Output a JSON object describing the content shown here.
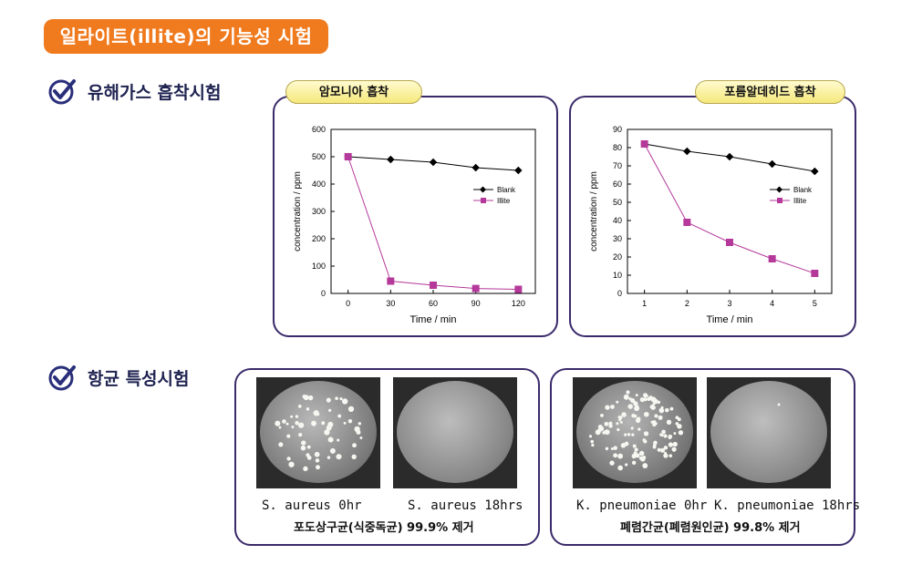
{
  "title": "일라이트(illite)의 기능성 시험",
  "sections": {
    "adsorption": "유해가스 흡착시험",
    "antibacterial": "항균 특성시험"
  },
  "colors": {
    "title_bg": "#f07a1e",
    "panel_border": "#3a2a6a",
    "blank": "#000000",
    "illite": "#b5399a"
  },
  "icons": {
    "section_marker": "check-circle-icon"
  },
  "charts": {
    "ammonia": {
      "tab": "암모니아 흡착"
    },
    "formaldehyde": {
      "tab": "포름알데히드 흡착"
    }
  },
  "chart_data": [
    {
      "type": "line",
      "title": "암모니아 흡착",
      "xlabel": "Time / min",
      "ylabel": "concentration / ppm",
      "x": [
        0,
        30,
        60,
        90,
        120
      ],
      "xticks": [
        "0",
        "30",
        "60",
        "90",
        "120"
      ],
      "ylim": [
        0,
        600
      ],
      "yticks": [
        "0",
        "100",
        "200",
        "300",
        "400",
        "500",
        "600"
      ],
      "legend_position": "right",
      "series": [
        {
          "name": "Blank",
          "values": [
            500,
            490,
            480,
            460,
            450
          ]
        },
        {
          "name": "Illite",
          "values": [
            500,
            45,
            30,
            18,
            15
          ]
        }
      ]
    },
    {
      "type": "line",
      "title": "포름알데히드 흡착",
      "xlabel": "Time / min",
      "ylabel": "concentration / ppm",
      "x": [
        1,
        2,
        3,
        4,
        5
      ],
      "xticks": [
        "1",
        "2",
        "3",
        "4",
        "5"
      ],
      "ylim": [
        0,
        90
      ],
      "yticks": [
        "0",
        "10",
        "20",
        "30",
        "40",
        "50",
        "60",
        "70",
        "80",
        "90"
      ],
      "legend_position": "right",
      "series": [
        {
          "name": "Blank",
          "values": [
            82,
            78,
            75,
            71,
            67
          ]
        },
        {
          "name": "Illite",
          "values": [
            82,
            39,
            28,
            19,
            11
          ]
        }
      ]
    }
  ],
  "bacteria": {
    "left": {
      "caption_a": "S. aureus 0hr",
      "caption_b": "S. aureus 18hrs",
      "result": "포도상구균(식중독균) 99.9% 제거"
    },
    "right": {
      "caption_a": "K. pneumoniae 0hr",
      "caption_b": "K. pneumoniae 18hrs",
      "result": "폐렴간균(폐렴원인균) 99.8% 제거"
    }
  }
}
